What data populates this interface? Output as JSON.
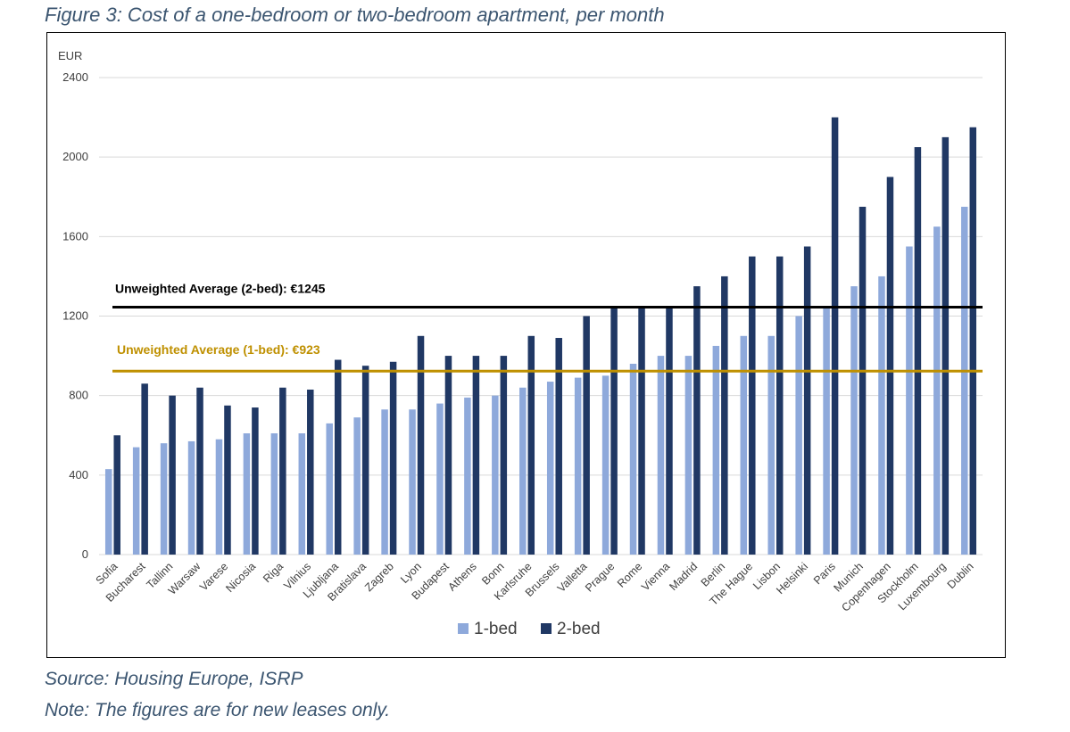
{
  "figure_title": "Figure 3: Cost of a one-bedroom or two-bedroom apartment, per month",
  "source": "Source: Housing Europe, ISRP",
  "note": "Note: The figures are for new leases only.",
  "colors": {
    "one_bed": "#8ea9db",
    "two_bed": "#203864",
    "avg_two": "#000000",
    "avg_one": "#bf9000",
    "grid": "#d9d9d9"
  },
  "chart_data": {
    "type": "bar",
    "ylabel": "EUR",
    "ylim": [
      0,
      2400
    ],
    "yticks": [
      0,
      400,
      800,
      1200,
      1600,
      2000,
      2400
    ],
    "grid": true,
    "legend_position": "bottom",
    "categories": [
      "Sofia",
      "Bucharest",
      "Tallinn",
      "Warsaw",
      "Varese",
      "Nicosia",
      "Riga",
      "Vilnius",
      "Ljubljana",
      "Bratislava",
      "Zagreb",
      "Lyon",
      "Budapest",
      "Athens",
      "Bonn",
      "Karlsruhe",
      "Brussels",
      "Valletta",
      "Prague",
      "Rome",
      "Vienna",
      "Madrid",
      "Berlin",
      "The Hague",
      "Lisbon",
      "Helsinki",
      "Paris",
      "Munich",
      "Copenhagen",
      "Stockholm",
      "Luxembourg",
      "Dublin"
    ],
    "series": [
      {
        "name": "1-bed",
        "values": [
          430,
          540,
          560,
          570,
          580,
          610,
          610,
          610,
          660,
          690,
          730,
          730,
          760,
          790,
          800,
          840,
          870,
          890,
          900,
          960,
          1000,
          1000,
          1050,
          1100,
          1100,
          1200,
          1240,
          1350,
          1400,
          1550,
          1650,
          1750
        ]
      },
      {
        "name": "2-bed",
        "values": [
          600,
          860,
          800,
          840,
          750,
          740,
          840,
          830,
          980,
          950,
          970,
          1100,
          1000,
          1000,
          1000,
          1100,
          1090,
          1200,
          1250,
          1250,
          1250,
          1350,
          1400,
          1500,
          1500,
          1550,
          2200,
          1750,
          1900,
          2050,
          2100,
          2150
        ]
      }
    ],
    "annotations": [
      {
        "label": "Unweighted Average (2-bed): €1245",
        "value": 1245
      },
      {
        "label": "Unweighted Average (1-bed): €923",
        "value": 923
      }
    ]
  }
}
